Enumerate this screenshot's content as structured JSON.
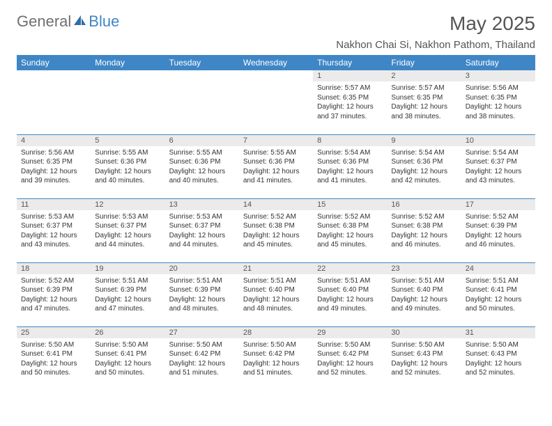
{
  "brand": {
    "text_general": "General",
    "text_blue": "Blue",
    "icon_color": "#2f6ea8"
  },
  "title": "May 2025",
  "location": "Nakhon Chai Si, Nakhon Pathom, Thailand",
  "colors": {
    "header_bg": "#3f86c6",
    "header_text": "#ffffff",
    "daynum_bg": "#ebebeb",
    "text_primary": "#555555",
    "text_body": "#333333",
    "rule": "#3f86c6"
  },
  "day_headers": [
    "Sunday",
    "Monday",
    "Tuesday",
    "Wednesday",
    "Thursday",
    "Friday",
    "Saturday"
  ],
  "weeks": [
    [
      {
        "day": "",
        "sunrise": "",
        "sunset": "",
        "daylight": "",
        "empty": true
      },
      {
        "day": "",
        "sunrise": "",
        "sunset": "",
        "daylight": "",
        "empty": true
      },
      {
        "day": "",
        "sunrise": "",
        "sunset": "",
        "daylight": "",
        "empty": true
      },
      {
        "day": "",
        "sunrise": "",
        "sunset": "",
        "daylight": "",
        "empty": true
      },
      {
        "day": "1",
        "sunrise": "Sunrise: 5:57 AM",
        "sunset": "Sunset: 6:35 PM",
        "daylight": "Daylight: 12 hours and 37 minutes."
      },
      {
        "day": "2",
        "sunrise": "Sunrise: 5:57 AM",
        "sunset": "Sunset: 6:35 PM",
        "daylight": "Daylight: 12 hours and 38 minutes."
      },
      {
        "day": "3",
        "sunrise": "Sunrise: 5:56 AM",
        "sunset": "Sunset: 6:35 PM",
        "daylight": "Daylight: 12 hours and 38 minutes."
      }
    ],
    [
      {
        "day": "4",
        "sunrise": "Sunrise: 5:56 AM",
        "sunset": "Sunset: 6:35 PM",
        "daylight": "Daylight: 12 hours and 39 minutes."
      },
      {
        "day": "5",
        "sunrise": "Sunrise: 5:55 AM",
        "sunset": "Sunset: 6:36 PM",
        "daylight": "Daylight: 12 hours and 40 minutes."
      },
      {
        "day": "6",
        "sunrise": "Sunrise: 5:55 AM",
        "sunset": "Sunset: 6:36 PM",
        "daylight": "Daylight: 12 hours and 40 minutes."
      },
      {
        "day": "7",
        "sunrise": "Sunrise: 5:55 AM",
        "sunset": "Sunset: 6:36 PM",
        "daylight": "Daylight: 12 hours and 41 minutes."
      },
      {
        "day": "8",
        "sunrise": "Sunrise: 5:54 AM",
        "sunset": "Sunset: 6:36 PM",
        "daylight": "Daylight: 12 hours and 41 minutes."
      },
      {
        "day": "9",
        "sunrise": "Sunrise: 5:54 AM",
        "sunset": "Sunset: 6:36 PM",
        "daylight": "Daylight: 12 hours and 42 minutes."
      },
      {
        "day": "10",
        "sunrise": "Sunrise: 5:54 AM",
        "sunset": "Sunset: 6:37 PM",
        "daylight": "Daylight: 12 hours and 43 minutes."
      }
    ],
    [
      {
        "day": "11",
        "sunrise": "Sunrise: 5:53 AM",
        "sunset": "Sunset: 6:37 PM",
        "daylight": "Daylight: 12 hours and 43 minutes."
      },
      {
        "day": "12",
        "sunrise": "Sunrise: 5:53 AM",
        "sunset": "Sunset: 6:37 PM",
        "daylight": "Daylight: 12 hours and 44 minutes."
      },
      {
        "day": "13",
        "sunrise": "Sunrise: 5:53 AM",
        "sunset": "Sunset: 6:37 PM",
        "daylight": "Daylight: 12 hours and 44 minutes."
      },
      {
        "day": "14",
        "sunrise": "Sunrise: 5:52 AM",
        "sunset": "Sunset: 6:38 PM",
        "daylight": "Daylight: 12 hours and 45 minutes."
      },
      {
        "day": "15",
        "sunrise": "Sunrise: 5:52 AM",
        "sunset": "Sunset: 6:38 PM",
        "daylight": "Daylight: 12 hours and 45 minutes."
      },
      {
        "day": "16",
        "sunrise": "Sunrise: 5:52 AM",
        "sunset": "Sunset: 6:38 PM",
        "daylight": "Daylight: 12 hours and 46 minutes."
      },
      {
        "day": "17",
        "sunrise": "Sunrise: 5:52 AM",
        "sunset": "Sunset: 6:39 PM",
        "daylight": "Daylight: 12 hours and 46 minutes."
      }
    ],
    [
      {
        "day": "18",
        "sunrise": "Sunrise: 5:52 AM",
        "sunset": "Sunset: 6:39 PM",
        "daylight": "Daylight: 12 hours and 47 minutes."
      },
      {
        "day": "19",
        "sunrise": "Sunrise: 5:51 AM",
        "sunset": "Sunset: 6:39 PM",
        "daylight": "Daylight: 12 hours and 47 minutes."
      },
      {
        "day": "20",
        "sunrise": "Sunrise: 5:51 AM",
        "sunset": "Sunset: 6:39 PM",
        "daylight": "Daylight: 12 hours and 48 minutes."
      },
      {
        "day": "21",
        "sunrise": "Sunrise: 5:51 AM",
        "sunset": "Sunset: 6:40 PM",
        "daylight": "Daylight: 12 hours and 48 minutes."
      },
      {
        "day": "22",
        "sunrise": "Sunrise: 5:51 AM",
        "sunset": "Sunset: 6:40 PM",
        "daylight": "Daylight: 12 hours and 49 minutes."
      },
      {
        "day": "23",
        "sunrise": "Sunrise: 5:51 AM",
        "sunset": "Sunset: 6:40 PM",
        "daylight": "Daylight: 12 hours and 49 minutes."
      },
      {
        "day": "24",
        "sunrise": "Sunrise: 5:51 AM",
        "sunset": "Sunset: 6:41 PM",
        "daylight": "Daylight: 12 hours and 50 minutes."
      }
    ],
    [
      {
        "day": "25",
        "sunrise": "Sunrise: 5:50 AM",
        "sunset": "Sunset: 6:41 PM",
        "daylight": "Daylight: 12 hours and 50 minutes."
      },
      {
        "day": "26",
        "sunrise": "Sunrise: 5:50 AM",
        "sunset": "Sunset: 6:41 PM",
        "daylight": "Daylight: 12 hours and 50 minutes."
      },
      {
        "day": "27",
        "sunrise": "Sunrise: 5:50 AM",
        "sunset": "Sunset: 6:42 PM",
        "daylight": "Daylight: 12 hours and 51 minutes."
      },
      {
        "day": "28",
        "sunrise": "Sunrise: 5:50 AM",
        "sunset": "Sunset: 6:42 PM",
        "daylight": "Daylight: 12 hours and 51 minutes."
      },
      {
        "day": "29",
        "sunrise": "Sunrise: 5:50 AM",
        "sunset": "Sunset: 6:42 PM",
        "daylight": "Daylight: 12 hours and 52 minutes."
      },
      {
        "day": "30",
        "sunrise": "Sunrise: 5:50 AM",
        "sunset": "Sunset: 6:43 PM",
        "daylight": "Daylight: 12 hours and 52 minutes."
      },
      {
        "day": "31",
        "sunrise": "Sunrise: 5:50 AM",
        "sunset": "Sunset: 6:43 PM",
        "daylight": "Daylight: 12 hours and 52 minutes."
      }
    ]
  ]
}
